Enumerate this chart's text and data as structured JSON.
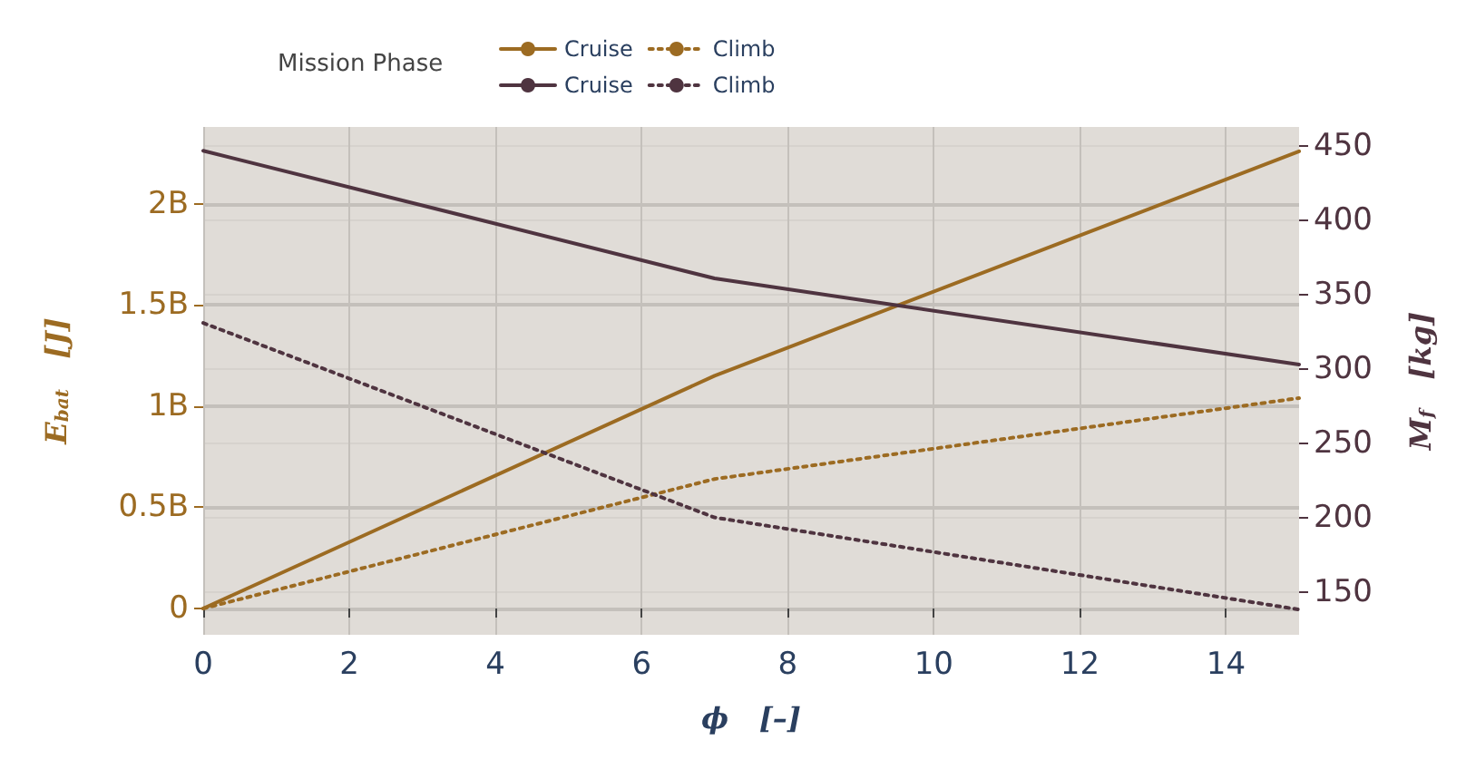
{
  "chart_data": {
    "type": "line",
    "xlabel": "ϕ   [–]",
    "ylabel": "E$_{bat}$   [J]",
    "y2label": "M$_{f}$   [kg]",
    "legend_title": "Mission Phase",
    "legend": "top left",
    "x": [
      0,
      7,
      15
    ],
    "xlim": [
      0,
      15
    ],
    "xticks": [
      0,
      2,
      4,
      6,
      8,
      10,
      12,
      14
    ],
    "ylim": [
      -130000000,
      2380000000
    ],
    "yticks": [
      0,
      {
        "value": 500000000,
        "label": "0.5B"
      },
      {
        "value": 1000000000,
        "label": "1B"
      },
      {
        "value": 1500000000,
        "label": "1.5B"
      },
      {
        "value": 2000000000,
        "label": "2B"
      }
    ],
    "y2lim": [
      121,
      463
    ],
    "y2ticks": [
      150,
      200,
      250,
      300,
      350,
      400,
      450
    ],
    "grid": true,
    "marker": "none",
    "series": [
      {
        "name": "Cruise",
        "color": "#9c6b22",
        "values": [
          0,
          1150000000,
          2260000000
        ],
        "line_style": "solid"
      },
      {
        "name": "Climb",
        "color": "#9c6b22",
        "values": [
          0,
          640000000,
          1040000000
        ],
        "line_style": "dotted"
      },
      {
        "name": "Cruise",
        "color": "#4f3440",
        "values": [
          447,
          361,
          303
        ],
        "line_style": "solid",
        "axis": "y2"
      },
      {
        "name": "Climb",
        "color": "#4f3440",
        "values": [
          331,
          200,
          138
        ],
        "line_style": "dotted",
        "axis": "y2"
      }
    ]
  }
}
